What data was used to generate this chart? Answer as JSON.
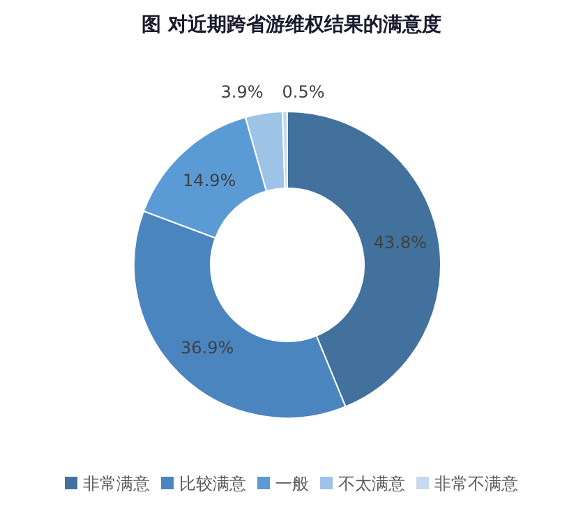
{
  "chart_data": {
    "type": "donut",
    "title": "图  对近期跨省游维权结果的满意度",
    "categories": [
      "非常满意",
      "比较满意",
      "一般",
      "不太满意",
      "非常不满意"
    ],
    "values": [
      43.8,
      36.9,
      14.9,
      3.9,
      0.5
    ],
    "colors": [
      "#41719c",
      "#4a85c0",
      "#5b9bd5",
      "#9dc3e6",
      "#c5d9ef"
    ],
    "value_labels": [
      "43.8%",
      "36.9%",
      "14.9%",
      "3.9%",
      "0.5%"
    ],
    "legend": "bottom"
  }
}
